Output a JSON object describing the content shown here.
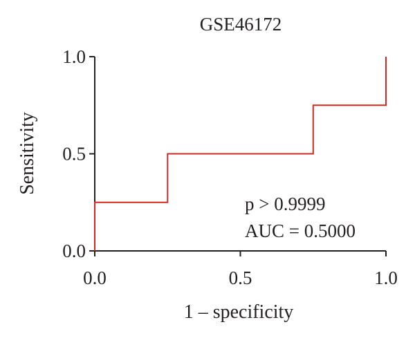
{
  "chart_data": {
    "type": "line",
    "title": "GSE46172",
    "xlabel": "1 – specificity",
    "ylabel": "Sensitivity",
    "xlim": [
      0.0,
      1.0
    ],
    "ylim": [
      0.0,
      1.0
    ],
    "x_ticks": [
      "0.0",
      "0.5",
      "1.0"
    ],
    "y_ticks": [
      "0.0",
      "0.5",
      "1.0"
    ],
    "grid": false,
    "series": [
      {
        "color": "#d7261e",
        "step": true,
        "x": [
          0.0,
          0.0,
          0.25,
          0.25,
          0.75,
          0.75,
          1.0,
          1.0
        ],
        "y": [
          0.0,
          0.25,
          0.25,
          0.5,
          0.5,
          0.75,
          0.75,
          1.0
        ]
      }
    ],
    "annotations": [
      "p > 0.9999",
      "AUC = 0.5000"
    ]
  }
}
